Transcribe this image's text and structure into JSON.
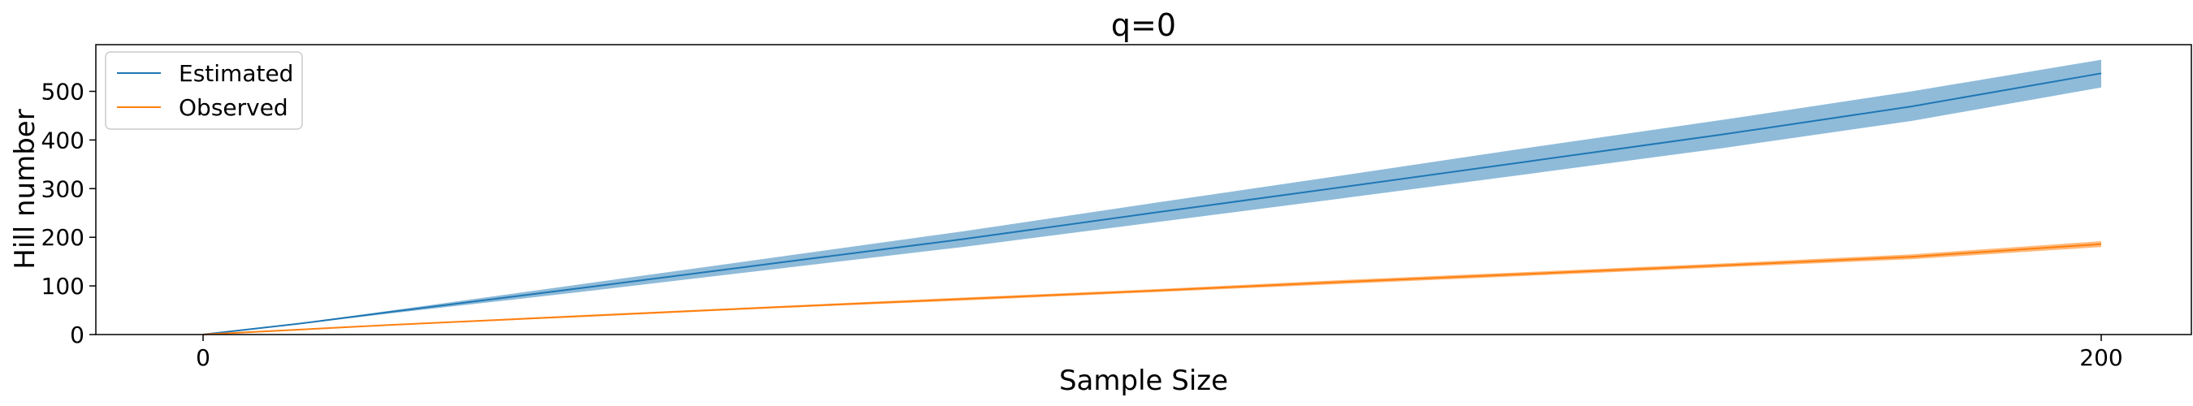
{
  "chart_data": {
    "type": "line",
    "title": "q=0",
    "xlabel": "Sample Size",
    "ylabel": "Hill number",
    "xlim": [
      -11.3,
      209.5
    ],
    "ylim": [
      0,
      596
    ],
    "xticks": [
      0,
      200
    ],
    "yticks": [
      0,
      100,
      200,
      300,
      400,
      500
    ],
    "grid": false,
    "legend": "top-left",
    "series": [
      {
        "name": "Estimated",
        "color": "#1f77b4",
        "x": [
          0,
          10,
          20,
          40,
          60,
          80,
          100,
          120,
          140,
          160,
          180,
          200
        ],
        "y": [
          0,
          22,
          47,
          96,
          146,
          196,
          250,
          303,
          357,
          411,
          469,
          537
        ],
        "lower": [
          0,
          21,
          44,
          88,
          134,
          180,
          230,
          280,
          331,
          383,
          439,
          508
        ],
        "upper": [
          0,
          23,
          50,
          104,
          158,
          212,
          270,
          327,
          385,
          441,
          500,
          565
        ]
      },
      {
        "name": "Observed",
        "color": "#ff7f0e",
        "x": [
          0,
          20,
          40,
          60,
          80,
          100,
          120,
          140,
          160,
          180,
          200
        ],
        "y": [
          0,
          20,
          38,
          56,
          73,
          90,
          108,
          125,
          142,
          160,
          186
        ],
        "lower": [
          0,
          19,
          36,
          54,
          70,
          87,
          104,
          121,
          138,
          155,
          180
        ],
        "upper": [
          0,
          21,
          40,
          58,
          76,
          93,
          112,
          129,
          146,
          165,
          192
        ]
      }
    ]
  }
}
